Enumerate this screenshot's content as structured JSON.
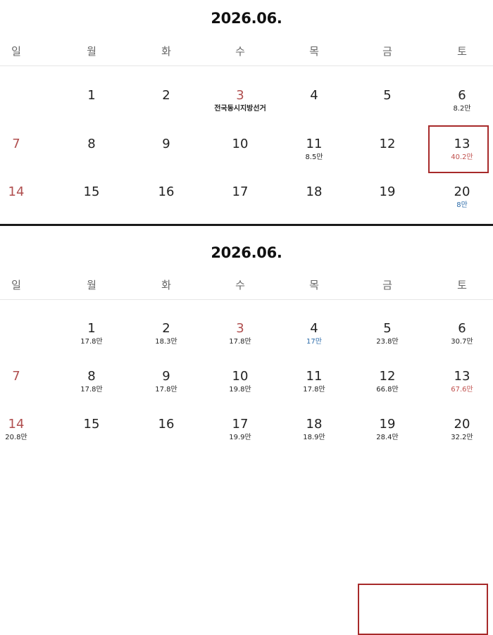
{
  "weekdays": [
    "일",
    "월",
    "화",
    "수",
    "목",
    "금",
    "토"
  ],
  "panels": [
    {
      "title": "2026.06.",
      "highlight_days": [
        13
      ],
      "weeks": [
        [
          null,
          {
            "day": "1"
          },
          {
            "day": "2"
          },
          {
            "day": "3",
            "day_color": "red",
            "note": "전국동시지방선거"
          },
          {
            "day": "4"
          },
          {
            "day": "5"
          },
          {
            "day": "6",
            "price": "8.2만"
          }
        ],
        [
          {
            "day": "7",
            "day_color": "red"
          },
          {
            "day": "8"
          },
          {
            "day": "9"
          },
          {
            "day": "10"
          },
          {
            "day": "11",
            "price": "8.5만"
          },
          {
            "day": "12"
          },
          {
            "day": "13",
            "price": "40.2만",
            "price_color": "red"
          }
        ],
        [
          {
            "day": "14",
            "day_color": "red"
          },
          {
            "day": "15"
          },
          {
            "day": "16"
          },
          {
            "day": "17"
          },
          {
            "day": "18"
          },
          {
            "day": "19"
          },
          {
            "day": "20",
            "price": "8만",
            "price_color": "blue"
          }
        ]
      ]
    },
    {
      "title": "2026.06.",
      "highlight_days": [
        12,
        13
      ],
      "weeks": [
        [
          null,
          {
            "day": "1",
            "price": "17.8만"
          },
          {
            "day": "2",
            "price": "18.3만"
          },
          {
            "day": "3",
            "day_color": "red",
            "price": "17.8만"
          },
          {
            "day": "4",
            "price": "17만",
            "price_color": "blue"
          },
          {
            "day": "5",
            "price": "23.8만"
          },
          {
            "day": "6",
            "price": "30.7만"
          }
        ],
        [
          {
            "day": "7",
            "day_color": "red"
          },
          {
            "day": "8",
            "price": "17.8만"
          },
          {
            "day": "9",
            "price": "17.8만"
          },
          {
            "day": "10",
            "price": "19.8만"
          },
          {
            "day": "11",
            "price": "17.8만"
          },
          {
            "day": "12",
            "price": "66.8만"
          },
          {
            "day": "13",
            "price": "67.6만",
            "price_color": "red"
          }
        ],
        [
          {
            "day": "14",
            "day_color": "red",
            "price": "20.8만"
          },
          {
            "day": "15"
          },
          {
            "day": "16"
          },
          {
            "day": "17",
            "price": "19.9만"
          },
          {
            "day": "18",
            "price": "18.9만"
          },
          {
            "day": "19",
            "price": "28.4만"
          },
          {
            "day": "20",
            "price": "32.2만"
          }
        ]
      ]
    }
  ]
}
